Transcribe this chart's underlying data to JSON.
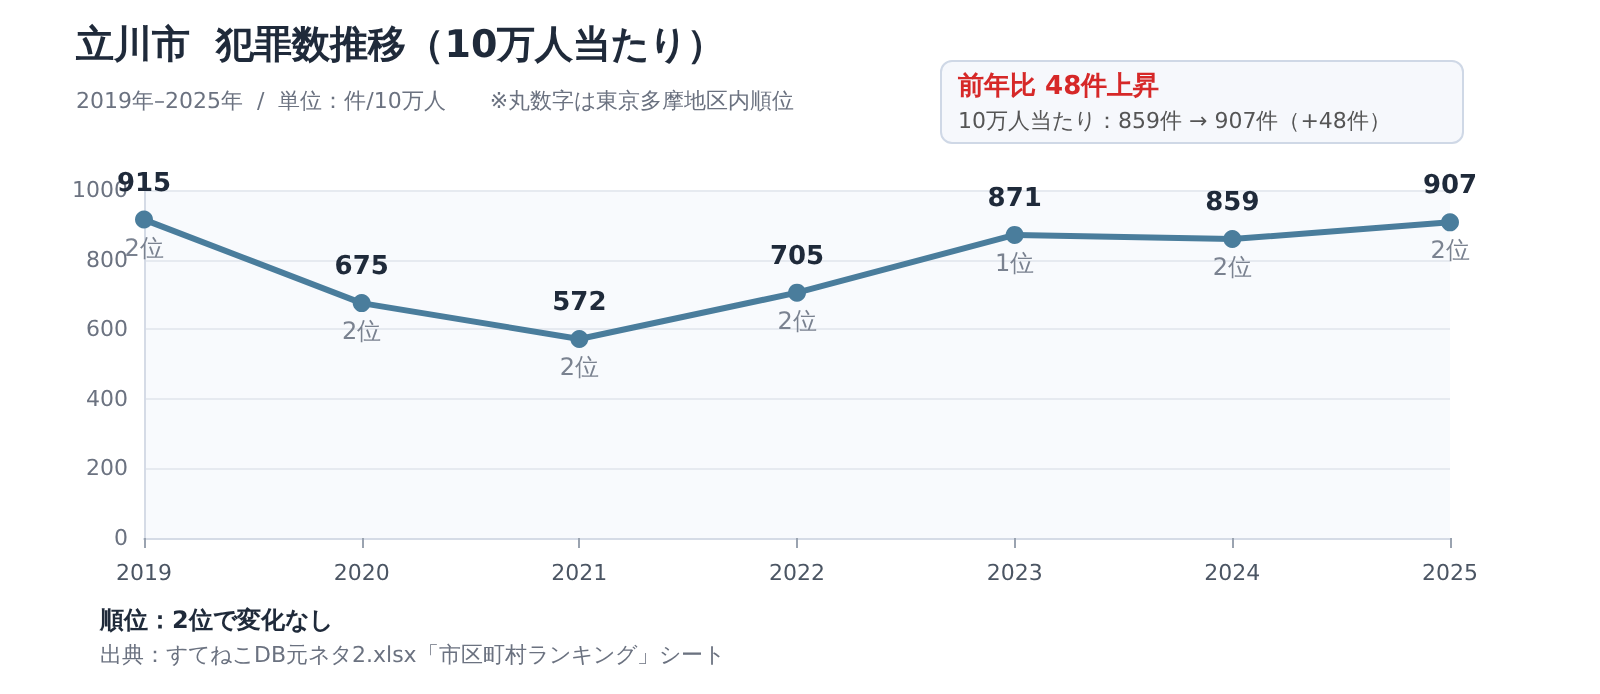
{
  "chart_data": {
    "type": "line",
    "title": "立川市  犯罪数推移（10万人当たり）",
    "subtitle": "2019年–2025年  /  単位：件/10万人　　※丸数字は東京多摩地区内順位",
    "categories": [
      "2019",
      "2020",
      "2021",
      "2022",
      "2023",
      "2024",
      "2025"
    ],
    "series": [
      {
        "color": "#4a7d9c",
        "values": [
          915,
          675,
          572,
          705,
          871,
          859,
          907
        ]
      }
    ],
    "ylim": [
      0,
      1000
    ],
    "yticks": [
      0,
      200,
      400,
      600,
      800,
      {
        "value": 1000,
        "label": "1000"
      }
    ],
    "grid": "y",
    "marker": "circle",
    "line_style": "solid",
    "data_labels": true,
    "annotations": [
      {
        "text": "2位",
        "x": "2019",
        "y": 915
      },
      {
        "text": "2位",
        "x": "2020",
        "y": 675
      },
      {
        "text": "2位",
        "x": "2021",
        "y": 572
      },
      {
        "text": "2位",
        "x": "2022",
        "y": 705
      },
      {
        "text": "1位",
        "x": "2023",
        "y": 871
      },
      {
        "text": "2位",
        "x": "2024",
        "y": 859
      },
      {
        "text": "2位",
        "x": "2025",
        "y": 907
      },
      "前年比  48件上昇",
      "10万人当たり：859件  →  907件（+48件）",
      "順位：2位で変化なし",
      "出典：すてねこDB元ネタ2.xlsx「市区町村ランキング」シート"
    ]
  }
}
